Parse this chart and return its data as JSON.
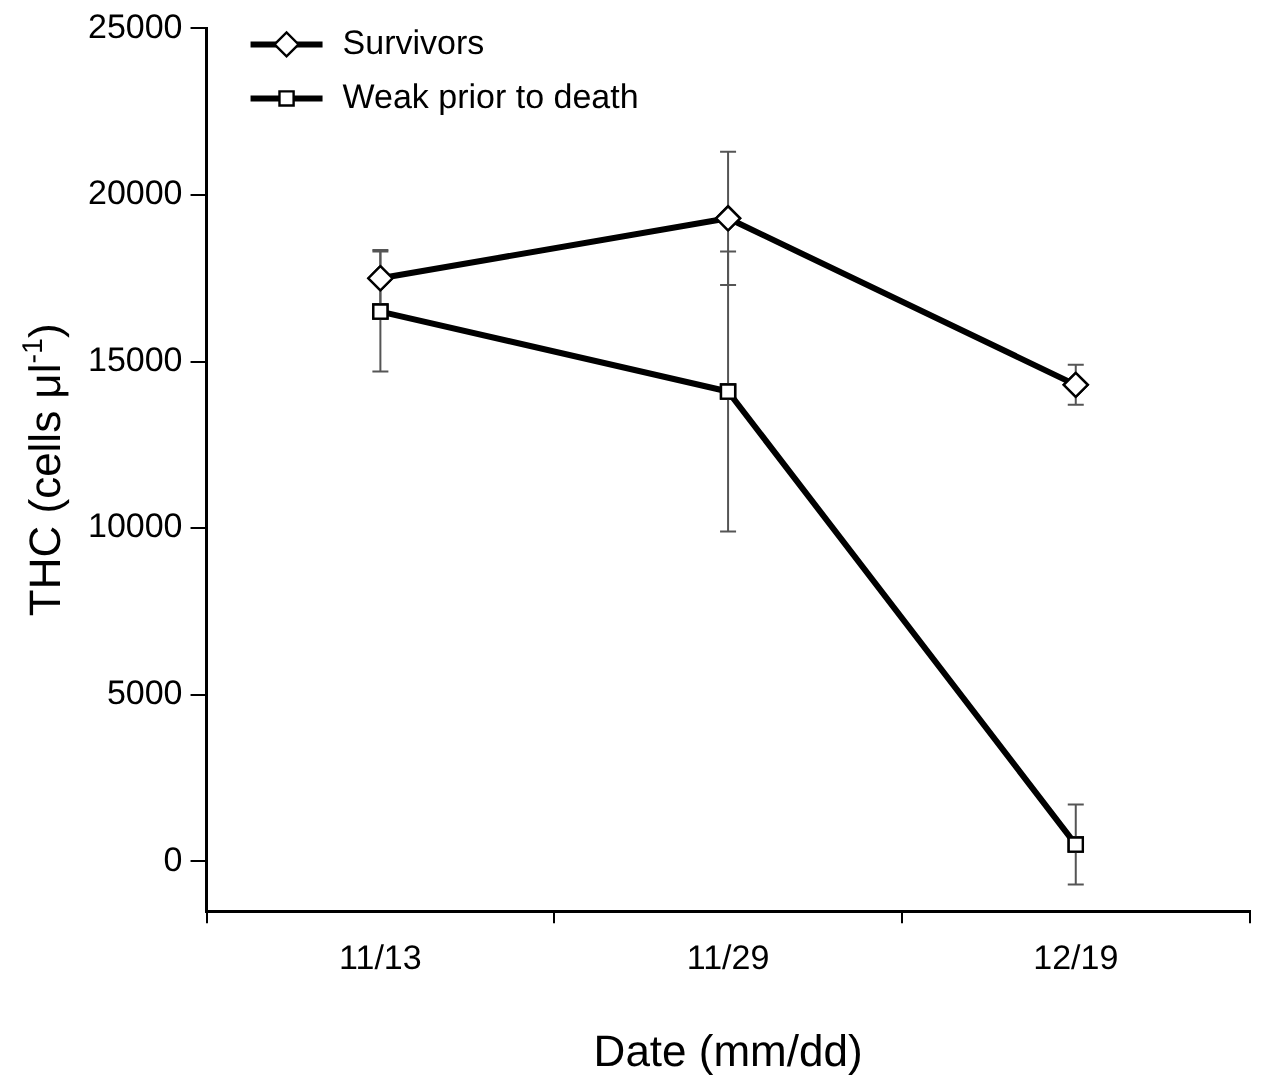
{
  "chart_data": {
    "type": "line",
    "xlabel": "Date (mm/dd)",
    "ylabel": "THC (cells μl$^{-1}$)",
    "categories": [
      "11/13",
      "11/29",
      "12/19"
    ],
    "series": [
      {
        "name": "Survivors",
        "color": "#000000",
        "marker": "diamond",
        "values": [
          17500,
          19300,
          14300
        ],
        "errors": [
          850,
          2000,
          600
        ]
      },
      {
        "name": "Weak prior to death",
        "color": "#000000",
        "marker": "square",
        "values": [
          16500,
          14100,
          500
        ],
        "errors": [
          1800,
          4200,
          1200
        ]
      }
    ],
    "ylim": [
      -1500,
      25000
    ],
    "yticks": [
      0,
      5000,
      10000,
      15000,
      20000,
      25000
    ],
    "grid": false,
    "legend": "top left",
    "line_style": "solid"
  }
}
